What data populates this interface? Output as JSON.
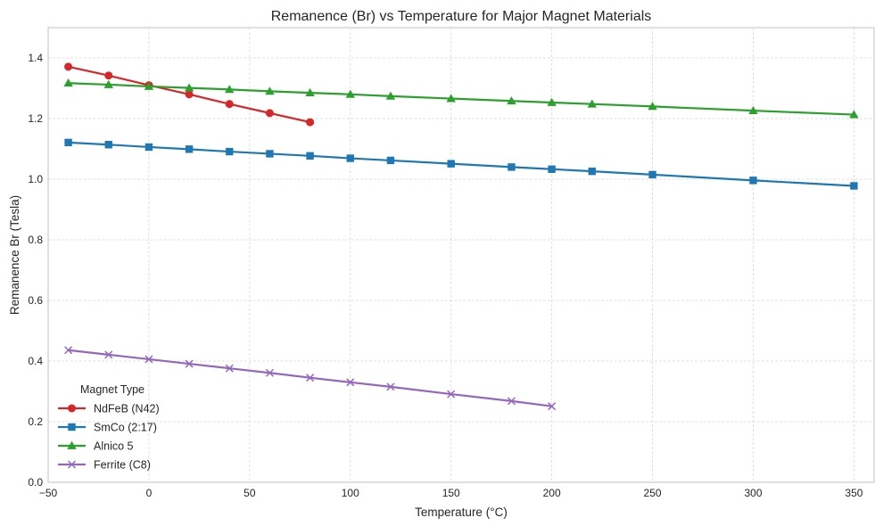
{
  "chart_data": {
    "type": "line",
    "title": "Remanence (Br) vs Temperature for Major Magnet Materials",
    "xlabel": "Temperature (°C)",
    "ylabel": "Remanence Br (Tesla)",
    "xlim": [
      -50,
      360
    ],
    "ylim": [
      0,
      1.5
    ],
    "xticks": [
      -50,
      0,
      50,
      100,
      150,
      200,
      250,
      300,
      350
    ],
    "xtick_labels": [
      "−50",
      "0",
      "50",
      "100",
      "150",
      "200",
      "250",
      "300",
      "350"
    ],
    "yticks": [
      0.0,
      0.2,
      0.4,
      0.6,
      0.8,
      1.0,
      1.2,
      1.4
    ],
    "ytick_labels": [
      "0.0",
      "0.2",
      "0.4",
      "0.6",
      "0.8",
      "1.0",
      "1.2",
      "1.4"
    ],
    "grid": true,
    "legend": {
      "title": "Magnet Type",
      "placement": "lower-left"
    },
    "series": [
      {
        "name": "NdFeB (N42)",
        "color": "#d62728",
        "marker": "circle",
        "x": [
          -40,
          -20,
          0,
          20,
          40,
          60,
          80
        ],
        "y": [
          1.371,
          1.342,
          1.31,
          1.28,
          1.248,
          1.218,
          1.188
        ]
      },
      {
        "name": "SmCo (2:17)",
        "color": "#1f77b4",
        "marker": "square",
        "x": [
          -40,
          -20,
          0,
          20,
          40,
          60,
          80,
          100,
          120,
          150,
          180,
          200,
          220,
          250,
          300,
          350
        ],
        "y": [
          1.121,
          1.114,
          1.106,
          1.099,
          1.091,
          1.084,
          1.077,
          1.069,
          1.062,
          1.051,
          1.04,
          1.033,
          1.026,
          1.015,
          0.996,
          0.978
        ]
      },
      {
        "name": "Alnico 5",
        "color": "#2ca02c",
        "marker": "triangle",
        "x": [
          -40,
          -20,
          0,
          20,
          40,
          60,
          80,
          100,
          120,
          150,
          180,
          200,
          220,
          250,
          300,
          350
        ],
        "y": [
          1.317,
          1.312,
          1.306,
          1.301,
          1.296,
          1.29,
          1.285,
          1.28,
          1.274,
          1.266,
          1.258,
          1.253,
          1.248,
          1.24,
          1.226,
          1.213
        ]
      },
      {
        "name": "Ferrite (C8)",
        "color": "#9467bd",
        "marker": "x",
        "x": [
          -40,
          -20,
          0,
          20,
          40,
          60,
          80,
          100,
          120,
          150,
          180,
          200
        ],
        "y": [
          0.436,
          0.421,
          0.406,
          0.391,
          0.376,
          0.361,
          0.345,
          0.33,
          0.315,
          0.291,
          0.268,
          0.251
        ]
      }
    ]
  }
}
